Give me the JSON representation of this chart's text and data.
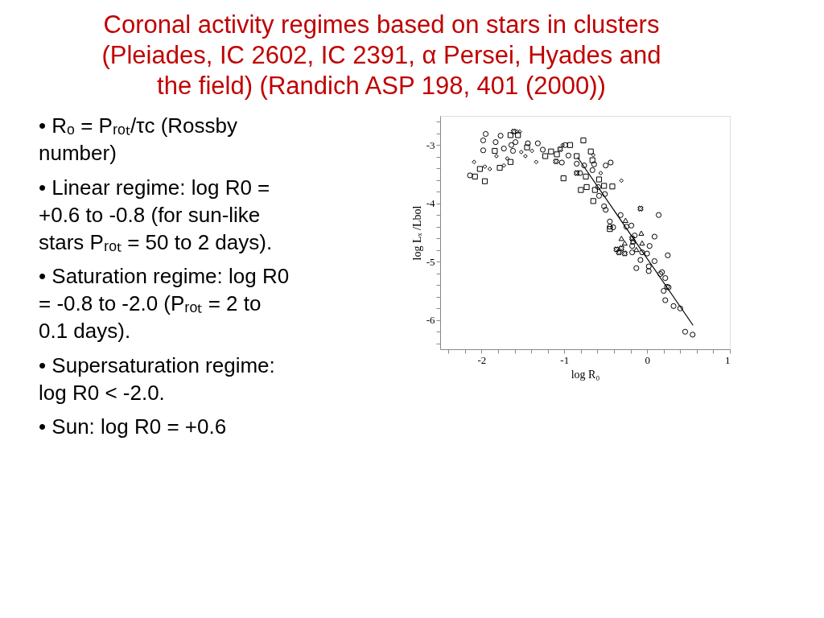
{
  "chart_data": {
    "type": "scatter",
    "title": "Coronal activity regimes based on stars in clusters (Pleiades, IC 2602, IC 2391, α Persei, Hyades and the field) (Randich ASP 198, 401 (2000))",
    "annotations": [
      "• Rₒ = Pᵣₒₜ/τc (Rossby number)",
      "• Linear regime: log R0 = +0.6 to -0.8 (for sun-like stars Pᵣₒₜ = 50 to 2 days).",
      "• Saturation regime: log R0 = -0.8 to -2.0 (Pᵣₒₜ = 2 to 0.1 days).",
      "• Supersaturation regime: log R0 < -2.0.",
      "• Sun: log R0 = +0.6"
    ],
    "xlabel": "log R₀",
    "ylabel": "log Lₓ /Lbol",
    "xlim": [
      -2.5,
      1
    ],
    "ylim": [
      -6.5,
      -2.5
    ],
    "xticks": [
      {
        "value": -2.4,
        "label": null
      },
      {
        "value": -2.2,
        "label": null
      },
      -2,
      {
        "value": -1.8,
        "label": null
      },
      {
        "value": -1.6,
        "label": null
      },
      {
        "value": -1.4,
        "label": null
      },
      {
        "value": -1.2,
        "label": null
      },
      -1,
      {
        "value": -0.8,
        "label": null
      },
      {
        "value": -0.6,
        "label": null
      },
      {
        "value": -0.4,
        "label": null
      },
      {
        "value": -0.2,
        "label": null
      },
      0,
      {
        "value": 0.2,
        "label": null
      },
      {
        "value": 0.4,
        "label": null
      },
      {
        "value": 0.6,
        "label": null
      },
      {
        "value": 0.8,
        "label": null
      },
      1
    ],
    "yticks": [
      {
        "value": -2.6,
        "label": null
      },
      {
        "value": -2.8,
        "label": null
      },
      -3,
      {
        "value": -3.2,
        "label": null
      },
      {
        "value": -3.4,
        "label": null
      },
      {
        "value": -3.6,
        "label": null
      },
      {
        "value": -3.8,
        "label": null
      },
      -4,
      {
        "value": -4.2,
        "label": null
      },
      {
        "value": -4.4,
        "label": null
      },
      {
        "value": -4.6,
        "label": null
      },
      {
        "value": -4.8,
        "label": null
      },
      -5,
      {
        "value": -5.2,
        "label": null
      },
      {
        "value": -5.4,
        "label": null
      },
      {
        "value": -5.6,
        "label": null
      },
      {
        "value": -5.8,
        "label": null
      },
      -6,
      {
        "value": -6.2,
        "label": null
      },
      {
        "value": -6.4,
        "label": null
      }
    ],
    "grid": false,
    "series": [
      {
        "type": "scatter",
        "marker": "circle",
        "color": "#000000",
        "x": [
          -1.98,
          -1.95,
          -1.98,
          -1.77,
          -1.83,
          -1.73,
          -1.64,
          -1.62,
          -1.44,
          -1.26,
          -1.32,
          -1.03,
          -0.85,
          -0.76,
          -0.66,
          -0.59,
          -0.58,
          -0.52,
          -0.45,
          -0.45,
          -0.44,
          -0.5,
          0.14,
          -0.81,
          -0.99
        ],
        "values": [
          -3.09,
          -2.81,
          -2.92,
          -2.84,
          -2.95,
          -3.06,
          -3.0,
          -3.1,
          -2.97,
          -3.08,
          -2.97,
          -3.3,
          -3.32,
          -3.35,
          -3.43,
          -3.72,
          -3.87,
          -4.05,
          -4.31,
          -4.4,
          -3.3,
          -3.35,
          -4.2,
          -3.48,
          -3.0
        ]
      },
      {
        "type": "scatter",
        "marker": "square",
        "color": "#000000",
        "x": [
          -2.08,
          -2.02,
          -1.96,
          -1.84,
          -1.78,
          -1.65,
          -1.65,
          -1.56,
          -1.45,
          -1.16,
          -1.09,
          -1.23,
          -1.01,
          -0.93,
          -0.77,
          -0.85,
          -0.68,
          -0.66,
          -0.8,
          -0.74,
          -0.73,
          -0.65,
          -0.63,
          -0.58,
          -0.52,
          -0.42,
          -0.45
        ],
        "values": [
          -3.54,
          -3.41,
          -3.62,
          -3.1,
          -3.39,
          -3.29,
          -2.83,
          -2.83,
          -3.04,
          -3.11,
          -3.16,
          -3.19,
          -3.57,
          -3.0,
          -2.92,
          -3.19,
          -3.11,
          -3.26,
          -3.77,
          -3.54,
          -3.72,
          -3.96,
          -3.77,
          -3.59,
          -3.7,
          -3.71,
          -4.44
        ]
      },
      {
        "type": "scatter",
        "marker": "diamond",
        "color": "#000000",
        "x": [
          -2.09,
          -1.96,
          -1.9,
          -1.82,
          -1.69,
          -1.73,
          -1.57,
          -1.54,
          -1.52,
          -1.47,
          -1.34,
          -1.39,
          -1.02,
          -0.65,
          -0.56,
          -0.31
        ],
        "values": [
          -3.29,
          -3.37,
          -3.41,
          -3.19,
          -3.23,
          -3.35,
          -2.77,
          -2.77,
          -3.12,
          -3.19,
          -3.29,
          -3.1,
          -3.0,
          -3.17,
          -3.48,
          -3.61
        ]
      },
      {
        "type": "scatter",
        "marker": "circle",
        "color": "#000000",
        "x": [
          -2.14,
          -1.59,
          -0.95,
          -0.64,
          -0.5,
          -0.41,
          -0.32,
          -0.25,
          -0.19,
          -0.15,
          -0.18,
          -0.18,
          -0.06,
          0.03,
          0.0,
          0.09,
          0.25,
          -0.13,
          -0.08,
          0.02,
          0.02,
          0.09,
          0.16,
          0.18,
          0.22,
          0.24,
          0.26,
          0.2,
          0.22,
          0.32,
          0.4,
          0.46,
          0.55,
          -0.51
        ],
        "values": [
          -3.52,
          -2.95,
          -3.18,
          -3.33,
          -4.11,
          -4.41,
          -4.2,
          -4.4,
          -4.38,
          -4.55,
          -4.73,
          -4.84,
          -4.84,
          -4.73,
          -4.86,
          -4.57,
          -4.89,
          -5.11,
          -4.97,
          -5.08,
          -5.16,
          -4.99,
          -5.21,
          -5.18,
          -5.28,
          -5.43,
          -5.44,
          -5.5,
          -5.66,
          -5.76,
          -5.8,
          -6.2,
          -6.25,
          -3.84
        ]
      },
      {
        "type": "scatter",
        "marker": "cross",
        "color": "#000000",
        "x": [
          -1.61,
          -1.1,
          -1.05,
          -0.85,
          -0.08,
          -0.37,
          -0.31,
          -0.27,
          -0.34,
          -0.18,
          -0.17
        ],
        "values": [
          -2.77,
          -3.28,
          -3.07,
          -3.48,
          -4.09,
          -4.79,
          -4.77,
          -4.86,
          -4.84,
          -4.6,
          -4.66
        ]
      },
      {
        "type": "scatter",
        "marker": "triangle",
        "color": "#000000",
        "x": [
          -0.26,
          -0.31,
          -0.07,
          -0.06,
          -0.13,
          -0.27
        ],
        "values": [
          -4.29,
          -4.6,
          -4.51,
          -4.68,
          -4.79,
          -4.68
        ]
      },
      {
        "type": "line",
        "marker": "none",
        "line_style": "solid",
        "color": "#000000",
        "x": [
          -0.84,
          0.555
        ],
        "values": [
          -3.21,
          -6.09
        ]
      }
    ]
  }
}
